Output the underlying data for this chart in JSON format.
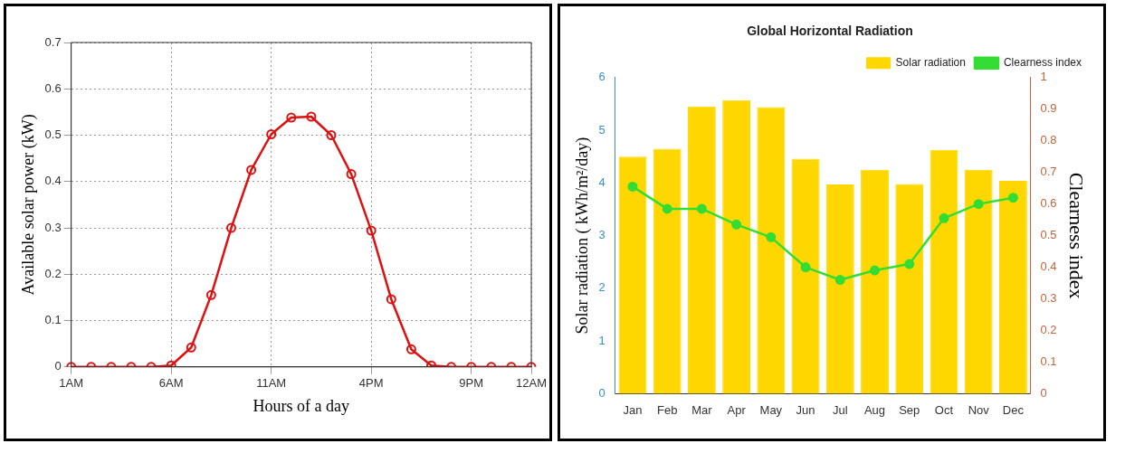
{
  "chart_data": [
    {
      "type": "line",
      "xlabel": "Hours of a day",
      "ylabel": "Available solar power (kW)",
      "categories": [
        "1AM",
        null,
        null,
        null,
        null,
        "6AM",
        null,
        null,
        null,
        null,
        "11AM",
        null,
        null,
        null,
        null,
        "4PM",
        null,
        null,
        null,
        null,
        "9PM",
        null,
        null,
        "12AM"
      ],
      "series": [
        {
          "color": "#dd1111",
          "values": [
            0,
            0,
            0,
            0,
            0,
            0.003,
            0.042,
            0.155,
            0.3,
            0.425,
            0.502,
            0.538,
            0.54,
            0.5,
            0.416,
            0.294,
            0.146,
            0.038,
            0.003,
            0,
            0,
            0,
            0,
            0
          ]
        }
      ],
      "ylim": [
        0,
        0.7
      ],
      "yticks": [
        0,
        0.1,
        0.2,
        0.3,
        0.4,
        0.5,
        0.6,
        0.7
      ],
      "grid": true,
      "marker": "circle",
      "line_style": "solid"
    },
    {
      "type": "bar",
      "title": "Global Horizontal Radiation",
      "ylabel": "Solar radiation ( kWh/m²/day)",
      "y2label": "Clearness index",
      "categories": [
        "Jan",
        "Feb",
        "Mar",
        "Apr",
        "May",
        "Jun",
        "Jul",
        "Aug",
        "Sep",
        "Oct",
        "Nov",
        "Dec"
      ],
      "series": [
        {
          "name": "Solar radiation",
          "color": "#ffd700",
          "values": [
            4.5,
            4.65,
            5.45,
            5.57,
            5.44,
            4.46,
            3.97,
            4.25,
            3.98,
            4.63,
            4.25,
            4.04
          ]
        },
        {
          "name": "Clearness index",
          "type": "line",
          "axis": "y2",
          "color": "#33dd33",
          "values": [
            0.655,
            0.585,
            0.585,
            0.535,
            0.495,
            0.4,
            0.36,
            0.39,
            0.41,
            0.555,
            0.6,
            0.62
          ]
        }
      ],
      "ylim": [
        0,
        6
      ],
      "yticks": [
        0,
        1,
        2,
        3,
        4,
        5,
        6
      ],
      "y2lim": [
        0,
        1
      ],
      "y2ticks": [
        0,
        0.1,
        0.2,
        0.3,
        0.4,
        0.5,
        0.6,
        0.7,
        0.8,
        0.9,
        1
      ],
      "legend": "top right",
      "marker": "circle"
    }
  ]
}
